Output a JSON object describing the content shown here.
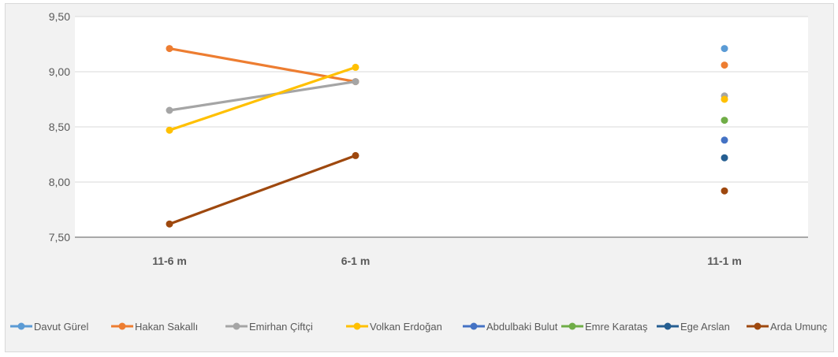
{
  "chart_data": {
    "type": "line",
    "title": "",
    "xlabel": "",
    "ylabel": "",
    "categories": [
      "11-6 m",
      "6-1 m",
      "",
      "11-1 m"
    ],
    "ylim": [
      7.5,
      9.5
    ],
    "yticks": [
      7.5,
      8.0,
      8.5,
      9.0,
      9.5
    ],
    "ytick_labels": [
      "7,50",
      "8,00",
      "8,50",
      "9,00",
      "9,50"
    ],
    "grid": true,
    "legend_position": "bottom",
    "series": [
      {
        "name": "Davut Gürel",
        "color": "#5b9bd5",
        "values": [
          null,
          null,
          null,
          9.21
        ]
      },
      {
        "name": "Hakan Sakallı",
        "color": "#ed7d31",
        "values": [
          9.21,
          8.91,
          null,
          9.06
        ]
      },
      {
        "name": "Emirhan Çiftçi",
        "color": "#a5a5a5",
        "values": [
          8.65,
          8.91,
          null,
          8.78
        ]
      },
      {
        "name": "Volkan Erdoğan",
        "color": "#ffc000",
        "values": [
          8.47,
          9.04,
          null,
          8.75
        ]
      },
      {
        "name": "Abdulbaki Bulut",
        "color": "#4472c4",
        "values": [
          null,
          null,
          null,
          8.38
        ]
      },
      {
        "name": "Emre Karataş",
        "color": "#70ad47",
        "values": [
          null,
          null,
          null,
          8.56
        ]
      },
      {
        "name": "Ege Arslan",
        "color": "#255e91",
        "values": [
          null,
          null,
          null,
          8.22
        ]
      },
      {
        "name": "Arda Umunç",
        "color": "#9e480e",
        "values": [
          7.62,
          8.24,
          null,
          7.92
        ]
      }
    ]
  }
}
